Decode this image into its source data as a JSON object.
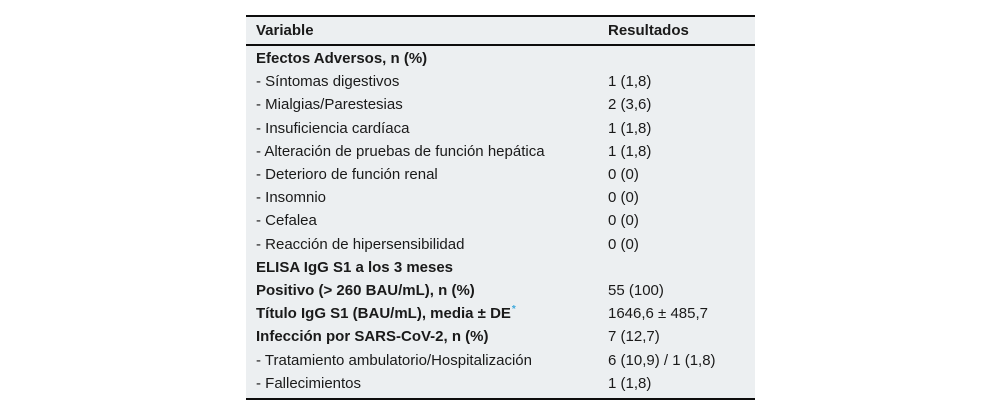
{
  "table": {
    "background_color": "#eceff1",
    "rule_color": "#0d0d0d",
    "accent_color": "#3fa9dc",
    "columns": [
      "Variable",
      "Resultados"
    ],
    "footnote_marker": "*",
    "rows": [
      {
        "variable": "Efectos Adversos, n (%)",
        "resultado": "",
        "bold": true
      },
      {
        "variable": "- Síntomas digestivos",
        "resultado": "1 (1,8)",
        "bold": false
      },
      {
        "variable": "- Mialgias/Parestesias",
        "resultado": "2 (3,6)",
        "bold": false
      },
      {
        "variable": "- Insuficiencia cardíaca",
        "resultado": "1 (1,8)",
        "bold": false
      },
      {
        "variable": "- Alteración de pruebas de función hepática",
        "resultado": "1 (1,8)",
        "bold": false
      },
      {
        "variable": "- Deterioro de función renal",
        "resultado": "0 (0)",
        "bold": false
      },
      {
        "variable": "- Insomnio",
        "resultado": "0 (0)",
        "bold": false
      },
      {
        "variable": "- Cefalea",
        "resultado": "0 (0)",
        "bold": false
      },
      {
        "variable": "- Reacción de hipersensibilidad",
        "resultado": "0 (0)",
        "bold": false
      },
      {
        "variable": "ELISA IgG S1 a los 3 meses",
        "resultado": "",
        "bold": true
      },
      {
        "variable": "Positivo (> 260 BAU/mL), n (%)",
        "resultado": "55 (100)",
        "bold": true
      },
      {
        "variable": "Título IgG S1 (BAU/mL), media ± DE",
        "resultado": "1646,6 ± 485,7",
        "bold": true,
        "marker": "*"
      },
      {
        "variable": "Infección por SARS-CoV-2, n (%)",
        "resultado": "7 (12,7)",
        "bold": true
      },
      {
        "variable": "- Tratamiento ambulatorio/Hospitalización",
        "resultado": "6 (10,9) / 1 (1,8)",
        "bold": false
      },
      {
        "variable": "- Fallecimientos",
        "resultado": "1 (1,8)",
        "bold": false
      }
    ]
  }
}
